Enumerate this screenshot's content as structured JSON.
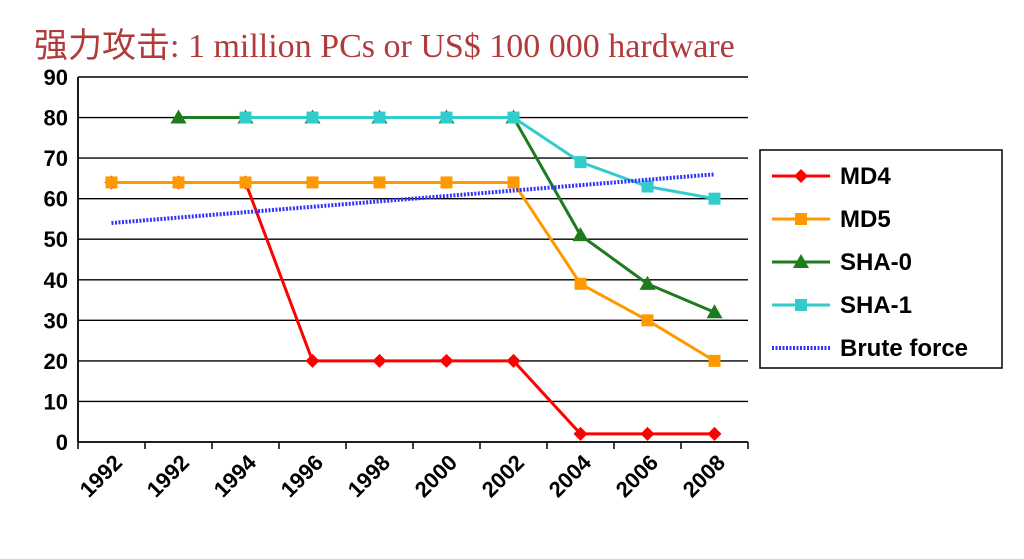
{
  "slide": {
    "title": "强力攻击: 1 million PCs or US$ 100 000 hardware"
  },
  "chart_data": {
    "type": "line",
    "title": "",
    "xlabel": "",
    "ylabel": "",
    "ylim": [
      0,
      90
    ],
    "yticks": [
      0,
      10,
      20,
      30,
      40,
      50,
      60,
      70,
      80,
      90
    ],
    "grid": "horizontal",
    "legend_position": "right",
    "x_tick_labels": [
      "1992",
      "1992",
      "1994",
      "1996",
      "1998",
      "2000",
      "2002",
      "2004",
      "2006",
      "2008"
    ],
    "series": [
      {
        "name": "MD4",
        "color": "#ff0000",
        "marker": "diamond",
        "points": [
          [
            1,
            64
          ],
          [
            2,
            64
          ],
          [
            3,
            64
          ],
          [
            4,
            20
          ],
          [
            5,
            20
          ],
          [
            6,
            20
          ],
          [
            7,
            20
          ],
          [
            8,
            2
          ],
          [
            9,
            2
          ],
          [
            10,
            2
          ]
        ]
      },
      {
        "name": "MD5",
        "color": "#ff9900",
        "marker": "square",
        "points": [
          [
            1,
            64
          ],
          [
            2,
            64
          ],
          [
            3,
            64
          ],
          [
            4,
            64
          ],
          [
            5,
            64
          ],
          [
            6,
            64
          ],
          [
            7,
            64
          ],
          [
            8,
            39
          ],
          [
            9,
            30
          ],
          [
            10,
            20
          ]
        ]
      },
      {
        "name": "SHA-0",
        "color": "#1e7b1e",
        "marker": "triangle",
        "points": [
          [
            2,
            80
          ],
          [
            3,
            80
          ],
          [
            4,
            80
          ],
          [
            5,
            80
          ],
          [
            6,
            80
          ],
          [
            7,
            80
          ],
          [
            8,
            51
          ],
          [
            9,
            39
          ],
          [
            10,
            32
          ]
        ]
      },
      {
        "name": "SHA-1",
        "color": "#33cccc",
        "marker": "square",
        "points": [
          [
            3,
            80
          ],
          [
            4,
            80
          ],
          [
            5,
            80
          ],
          [
            6,
            80
          ],
          [
            7,
            80
          ],
          [
            8,
            69
          ],
          [
            9,
            63
          ],
          [
            10,
            60
          ]
        ]
      },
      {
        "name": "Brute force",
        "color": "#3333ff",
        "marker": "none",
        "points": [
          [
            1,
            54
          ],
          [
            10,
            66
          ]
        ]
      }
    ]
  }
}
